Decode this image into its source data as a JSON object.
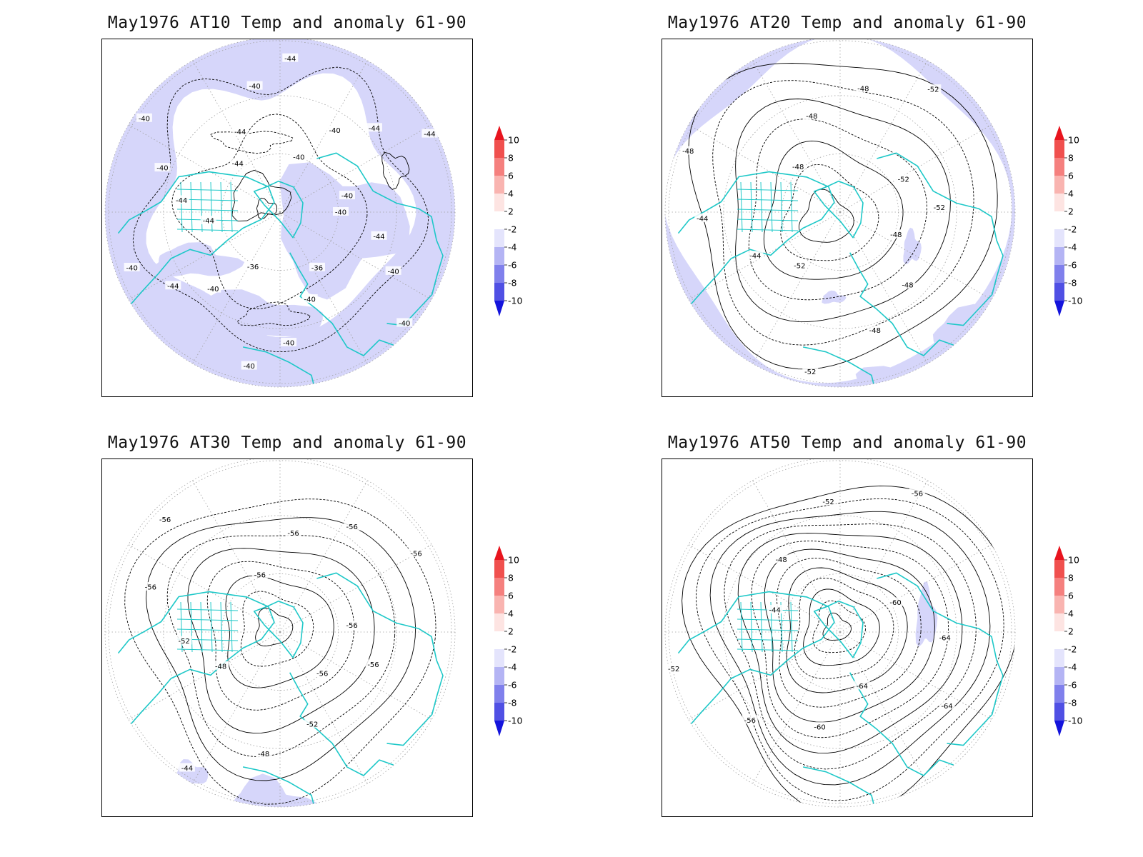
{
  "figure": {
    "panels": [
      {
        "id": "at10",
        "title": "May1976 AT10 Temp and anomaly 61-90",
        "level": "AT10",
        "anomaly_shading": "widespread",
        "contour_labels": [
          "-40",
          "-44",
          "-40",
          "-40",
          "-36",
          "-40",
          "-40",
          "-40",
          "-36",
          "-40",
          "-44",
          "-40",
          "-44",
          "-44",
          "-40",
          "-40",
          "-44",
          "-44",
          "-40",
          "-44",
          "-40",
          "-40",
          "-44",
          "-44",
          "-40"
        ]
      },
      {
        "id": "at20",
        "title": "May1976 AT20 Temp and anomaly 61-90",
        "level": "AT20",
        "anomaly_shading": "edges",
        "contour_labels": [
          "-48",
          "-48",
          "-48",
          "-52",
          "-52",
          "-44",
          "-44",
          "-48",
          "-48",
          "-48",
          "-48",
          "-52",
          "-52",
          "-52"
        ]
      },
      {
        "id": "at30",
        "title": "May1976 AT30 Temp and anomaly 61-90",
        "level": "AT30",
        "anomaly_shading": "sparse",
        "contour_labels": [
          "-56",
          "-52",
          "-48",
          "-44",
          "-48",
          "-52",
          "-56",
          "-56",
          "-56",
          "-56",
          "-56",
          "-56",
          "-56",
          "-56"
        ]
      },
      {
        "id": "at50",
        "title": "May1976 AT50 Temp and anomaly 61-90",
        "level": "AT50",
        "anomaly_shading": "minimal",
        "contour_labels": [
          "-64",
          "-60",
          "-56",
          "-52",
          "-44",
          "-48",
          "-52",
          "-56",
          "-60",
          "-64",
          "-64"
        ]
      }
    ],
    "colorbar": {
      "ticks": [
        "10",
        "8",
        "6",
        "4",
        "2",
        "-2",
        "-4",
        "-6",
        "-8",
        "-10"
      ],
      "colors": [
        "#e8141e",
        "#f0504e",
        "#f5807e",
        "#f9b4b0",
        "#fde4e2",
        "#ffffff",
        "#e4e4fc",
        "#b4b4f4",
        "#8080ec",
        "#5050e4",
        "#1414dc"
      ]
    },
    "colors": {
      "coastline": "#1ec8c8",
      "negative_anomaly_fill": "#d6d6fa",
      "contour_line": "#000000",
      "grid_line": "#a0a0a0"
    }
  }
}
